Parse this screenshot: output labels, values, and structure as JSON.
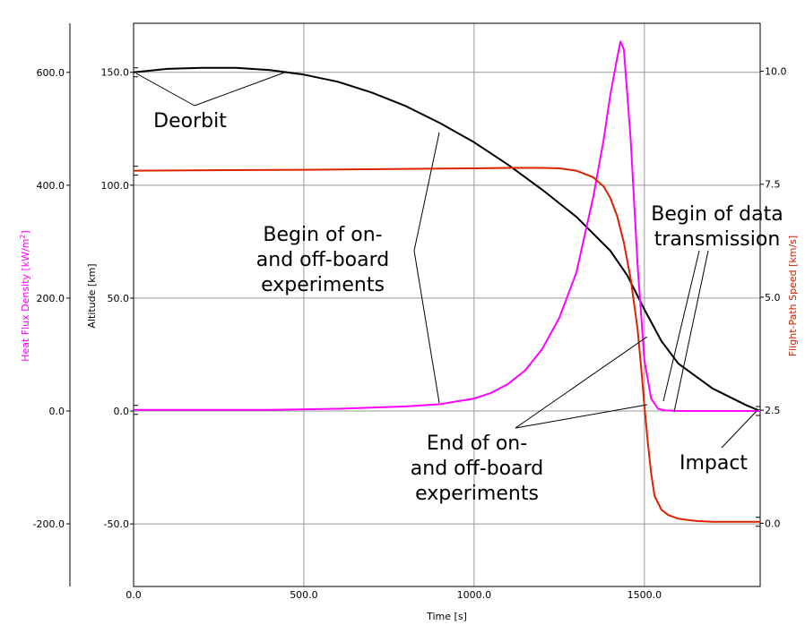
{
  "chart_data": {
    "type": "line",
    "xlabel": "Time [s]",
    "x_ticks": [
      0,
      500,
      1000,
      1500
    ],
    "xlim": [
      0,
      1840
    ],
    "axes": {
      "heat_flux": {
        "label_main": "Heat Flux Density [kW/m",
        "label_sup": "2",
        "label_end": "]",
        "color": "#ff00ff",
        "ticks": [
          -200,
          0,
          200,
          400,
          600
        ],
        "range": [
          -311,
          687
        ]
      },
      "altitude": {
        "label": "Altitude [km]",
        "color": "#000000",
        "ticks": [
          -50,
          0,
          50,
          100,
          150
        ],
        "range": [
          -77.7,
          171.7
        ]
      },
      "speed": {
        "label": "Flight-Path Speed [km/s]",
        "color": "#cc2200",
        "ticks": [
          0,
          2.5,
          5,
          7.5,
          10
        ],
        "range": [
          -1.4,
          11.06
        ]
      }
    },
    "series": [
      {
        "name": "Altitude",
        "axis": "altitude",
        "color": "#000000",
        "x": [
          0,
          100,
          200,
          300,
          400,
          500,
          600,
          700,
          800,
          900,
          1000,
          1100,
          1200,
          1300,
          1400,
          1450,
          1500,
          1550,
          1600,
          1700,
          1800,
          1840
        ],
        "y": [
          150,
          151.5,
          152,
          152,
          151,
          149,
          145.8,
          141,
          135,
          127.5,
          119,
          109,
          98,
          86,
          71,
          60,
          45,
          31,
          21,
          10,
          2.5,
          0
        ]
      },
      {
        "name": "Heat Flux Density",
        "axis": "heat_flux",
        "color": "#ff00ff",
        "x": [
          0,
          400,
          600,
          800,
          900,
          1000,
          1050,
          1100,
          1150,
          1200,
          1250,
          1300,
          1350,
          1380,
          1400,
          1420,
          1430,
          1440,
          1460,
          1480,
          1500,
          1520,
          1540,
          1560,
          1600,
          1840
        ],
        "y": [
          2,
          2,
          4,
          8,
          12,
          22,
          32,
          48,
          72,
          110,
          165,
          245,
          380,
          480,
          560,
          625,
          655,
          640,
          480,
          260,
          90,
          22,
          4,
          1,
          0,
          0
        ]
      },
      {
        "name": "Flight-Path Speed",
        "axis": "speed",
        "color": "#dd2200",
        "x": [
          0,
          500,
          1000,
          1100,
          1200,
          1250,
          1300,
          1350,
          1380,
          1400,
          1420,
          1440,
          1460,
          1480,
          1490,
          1500,
          1510,
          1520,
          1530,
          1550,
          1570,
          1600,
          1650,
          1700,
          1840
        ],
        "y": [
          7.8,
          7.82,
          7.85,
          7.86,
          7.86,
          7.85,
          7.8,
          7.65,
          7.45,
          7.2,
          6.8,
          6.2,
          5.4,
          4.3,
          3.5,
          2.6,
          1.8,
          1.1,
          0.6,
          0.3,
          0.18,
          0.1,
          0.05,
          0.03,
          0.03
        ]
      }
    ],
    "annotations": [
      {
        "lines": [
          "Deorbit"
        ]
      },
      {
        "lines": [
          "Begin of on-",
          "and off-board",
          "experiments"
        ]
      },
      {
        "lines": [
          "Begin of data",
          "transmission"
        ]
      },
      {
        "lines": [
          "End of on-",
          "and off-board",
          "experiments"
        ]
      },
      {
        "lines": [
          "Impact"
        ]
      }
    ]
  }
}
